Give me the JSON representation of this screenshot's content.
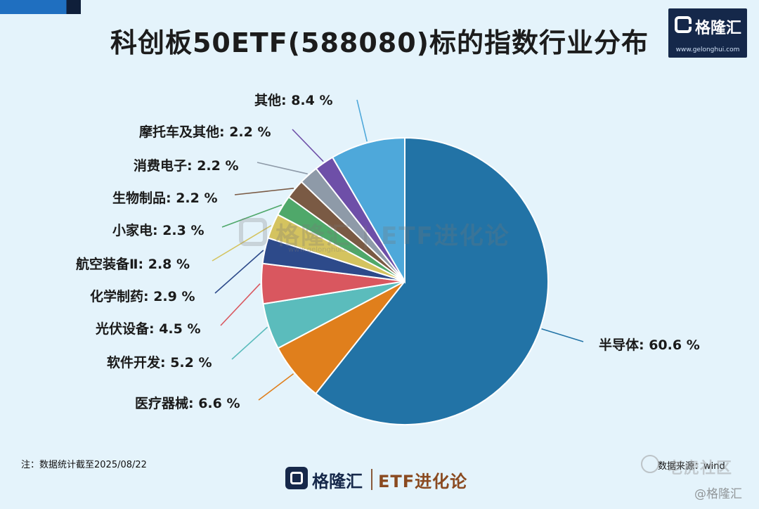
{
  "title": "科创板50ETF(588080)标的指数行业分布",
  "brand": {
    "logo_text": "格隆汇",
    "logo_url": "www.gelonghui.com",
    "footer_brand": "格隆汇",
    "footer_tag": "ETF进化论"
  },
  "watermarks": {
    "center_text": "格隆汇 | ETF进化论",
    "center_url": "www.gelonghui.com",
    "tiger": "老虎社区",
    "handle": "@格隆汇"
  },
  "note": "注：数据统计截至2025/08/22",
  "source": "数据来源：wind",
  "colors": {
    "background": "#e4f3fb",
    "title": "#1c1c1c"
  },
  "chart_data": {
    "type": "pie",
    "start": "12 o'clock, clockwise",
    "slices": [
      {
        "label": "半导体",
        "value": 60.6,
        "display": "半导体: 60.6 %",
        "color": "#2273a6"
      },
      {
        "label": "医疗器械",
        "value": 6.6,
        "display": "医疗器械: 6.6 %",
        "color": "#e07f1c"
      },
      {
        "label": "软件开发",
        "value": 5.2,
        "display": "软件开发: 5.2 %",
        "color": "#5bbcbc"
      },
      {
        "label": "光伏设备",
        "value": 4.5,
        "display": "光伏设备: 4.5 %",
        "color": "#d9575f"
      },
      {
        "label": "化学制药",
        "value": 2.9,
        "display": "化学制药: 2.9 %",
        "color": "#2d4a8a"
      },
      {
        "label": "航空装备Ⅱ",
        "value": 2.8,
        "display": "航空装备Ⅱ: 2.8 %",
        "color": "#d4c35f"
      },
      {
        "label": "小家电",
        "value": 2.3,
        "display": "小家电: 2.3 %",
        "color": "#4fa86a"
      },
      {
        "label": "生物制品",
        "value": 2.2,
        "display": "生物制品: 2.2 %",
        "color": "#7a5a44"
      },
      {
        "label": "消费电子",
        "value": 2.2,
        "display": "消费电子: 2.2 %",
        "color": "#8e9aa8"
      },
      {
        "label": "摩托车及其他",
        "value": 2.2,
        "display": "摩托车及其他: 2.2 %",
        "color": "#6e4fa8"
      },
      {
        "label": "其他",
        "value": 8.4,
        "display": "其他: 8.4 %",
        "color": "#4ea8da"
      }
    ]
  }
}
